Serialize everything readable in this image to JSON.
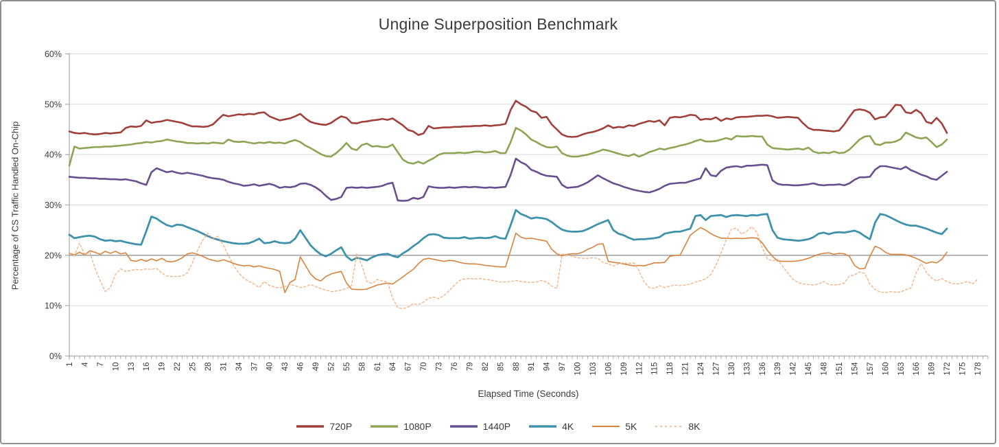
{
  "title": "Ungine Superposition Benchmark",
  "frame": {
    "border_color": "#8f8f8f",
    "background": "#ffffff"
  },
  "y_axis": {
    "title": "Percentage of CS Traffic Handled On-Chip",
    "min": 0,
    "max": 60,
    "step": 10,
    "tick_labels": [
      "0%",
      "10%",
      "20%",
      "30%",
      "40%",
      "50%",
      "60%"
    ],
    "emphasized_gridline": 20
  },
  "x_axis": {
    "title": "Elapsed Time (Seconds)",
    "first_label": 1,
    "label_step": 3,
    "last_label": 178,
    "axis_max": 180
  },
  "legend": [
    {
      "label": "720P",
      "color": "#A13F3B",
      "dashed": false,
      "swatch_width": 3.6
    },
    {
      "label": "1080P",
      "color": "#8DA452",
      "dashed": false,
      "swatch_width": 3.6
    },
    {
      "label": "1440P",
      "color": "#66508F",
      "dashed": false,
      "swatch_width": 3.6
    },
    {
      "label": "4K",
      "color": "#3F92AC",
      "dashed": false,
      "swatch_width": 3.6
    },
    {
      "label": "5K",
      "color": "#D9823C",
      "dashed": false,
      "swatch_width": 2.0
    },
    {
      "label": "8K",
      "color": "#F3AE7E",
      "dashed": true,
      "swatch_width": 1.6
    }
  ],
  "chart_data": {
    "type": "line",
    "title": "Ungine Superposition Benchmark",
    "xlabel": "Elapsed Time (Seconds)",
    "ylabel": "Percentage of CS Traffic Handled On-Chip",
    "x_start": 1,
    "x_step": 1,
    "ylim": [
      0,
      60
    ],
    "grid": true,
    "legend_position": "bottom",
    "series": [
      {
        "name": "720P",
        "color": "#A13F3B",
        "width": 2.6,
        "dash": null,
        "values": [
          44.6,
          44.3,
          44.2,
          44.3,
          44.1,
          44.0,
          44.1,
          44.3,
          44.2,
          44.3,
          44.4,
          45.3,
          45.6,
          45.5,
          45.7,
          46.8,
          46.3,
          46.5,
          46.6,
          46.9,
          46.7,
          46.5,
          46.3,
          45.9,
          45.6,
          45.6,
          45.5,
          45.6,
          46.0,
          47.0,
          47.9,
          47.6,
          47.8,
          48.0,
          47.9,
          48.1,
          48.0,
          48.3,
          48.4,
          47.6,
          47.2,
          46.8,
          47.0,
          47.2,
          47.6,
          48.1,
          47.2,
          46.5,
          46.2,
          46.0,
          45.9,
          46.3,
          47.0,
          47.6,
          47.3,
          46.3,
          46.2,
          46.5,
          46.6,
          46.8,
          46.9,
          47.1,
          46.9,
          47.2,
          46.5,
          45.8,
          44.9,
          44.6,
          43.9,
          44.2,
          45.7,
          45.2,
          45.3,
          45.4,
          45.4,
          45.5,
          45.5,
          45.6,
          45.6,
          45.7,
          45.7,
          45.8,
          45.7,
          45.8,
          45.9,
          46.1,
          48.9,
          50.7,
          50.0,
          49.5,
          48.7,
          48.4,
          47.3,
          47.5,
          46.0,
          45.0,
          44.0,
          43.6,
          43.5,
          43.6,
          44.0,
          44.3,
          44.5,
          44.8,
          45.2,
          45.8,
          45.3,
          45.5,
          45.4,
          45.8,
          45.7,
          46.1,
          46.4,
          46.7,
          46.5,
          46.8,
          45.8,
          47.3,
          47.5,
          47.4,
          47.6,
          47.9,
          47.8,
          46.9,
          47.1,
          47.0,
          47.4,
          46.7,
          47.2,
          47.0,
          47.4,
          47.5,
          47.5,
          47.6,
          47.7,
          47.7,
          47.8,
          47.6,
          47.3,
          47.4,
          47.5,
          47.4,
          47.3,
          46.2,
          45.3,
          44.9,
          44.9,
          44.8,
          44.7,
          44.6,
          44.8,
          46.0,
          47.5,
          48.8,
          49.0,
          48.8,
          48.3,
          47.0,
          47.4,
          47.5,
          48.6,
          49.9,
          49.8,
          48.4,
          48.2,
          48.9,
          48.2,
          46.5,
          46.2,
          47.3,
          46.2,
          44.3
        ]
      },
      {
        "name": "1080P",
        "color": "#8DA452",
        "width": 2.6,
        "dash": null,
        "values": [
          37.8,
          41.6,
          41.2,
          41.3,
          41.4,
          41.5,
          41.5,
          41.6,
          41.6,
          41.7,
          41.8,
          41.9,
          42.0,
          42.2,
          42.3,
          42.5,
          42.4,
          42.6,
          42.7,
          43.0,
          42.8,
          42.6,
          42.5,
          42.3,
          42.3,
          42.2,
          42.3,
          42.2,
          42.4,
          42.3,
          42.2,
          43.0,
          42.6,
          42.5,
          42.6,
          42.4,
          42.2,
          42.4,
          42.3,
          42.5,
          42.3,
          42.4,
          42.2,
          42.6,
          42.9,
          42.5,
          41.8,
          41.3,
          40.7,
          40.1,
          39.7,
          39.6,
          40.3,
          41.2,
          42.3,
          41.2,
          40.9,
          41.9,
          42.2,
          41.6,
          41.7,
          41.5,
          41.5,
          42.0,
          40.5,
          39.0,
          38.4,
          38.2,
          38.6,
          38.2,
          38.8,
          39.3,
          40.0,
          40.3,
          40.3,
          40.3,
          40.4,
          40.3,
          40.4,
          40.6,
          40.6,
          40.4,
          40.5,
          40.7,
          40.3,
          40.3,
          42.5,
          45.3,
          44.8,
          44.0,
          43.0,
          42.5,
          41.9,
          41.5,
          41.4,
          41.6,
          40.3,
          39.8,
          39.6,
          39.6,
          39.8,
          40.0,
          40.3,
          40.6,
          41.0,
          40.8,
          40.5,
          40.2,
          39.9,
          39.7,
          40.1,
          39.6,
          40.0,
          40.5,
          40.8,
          41.2,
          41.0,
          41.3,
          41.5,
          41.8,
          42.0,
          42.3,
          42.7,
          43.0,
          42.6,
          42.6,
          42.7,
          43.0,
          43.3,
          43.0,
          43.7,
          43.6,
          43.6,
          43.7,
          43.6,
          43.6,
          42.0,
          41.3,
          41.2,
          41.1,
          41.0,
          41.1,
          41.2,
          41.0,
          41.4,
          40.6,
          40.3,
          40.4,
          40.3,
          40.6,
          40.3,
          40.4,
          41.0,
          42.0,
          43.0,
          43.6,
          43.7,
          42.1,
          41.9,
          42.4,
          42.4,
          42.6,
          43.1,
          44.4,
          43.9,
          43.4,
          43.2,
          43.4,
          42.5,
          41.5,
          42.0,
          43.0
        ]
      },
      {
        "name": "1440P",
        "color": "#66508F",
        "width": 2.6,
        "dash": null,
        "values": [
          35.6,
          35.5,
          35.4,
          35.4,
          35.3,
          35.3,
          35.2,
          35.2,
          35.1,
          35.1,
          35.0,
          35.1,
          34.9,
          34.7,
          34.3,
          34.0,
          36.5,
          37.3,
          36.9,
          36.5,
          36.7,
          36.4,
          36.2,
          36.4,
          36.2,
          36.0,
          35.8,
          35.5,
          35.3,
          35.2,
          35.0,
          34.6,
          34.3,
          34.1,
          33.8,
          33.9,
          34.1,
          33.8,
          34.0,
          34.2,
          33.9,
          33.4,
          33.6,
          33.5,
          33.7,
          34.2,
          34.3,
          34.0,
          33.5,
          32.8,
          31.8,
          31.0,
          31.2,
          31.6,
          33.4,
          33.5,
          33.4,
          33.5,
          33.4,
          33.5,
          33.6,
          33.8,
          34.2,
          34.4,
          30.9,
          30.8,
          30.9,
          31.4,
          31.2,
          31.6,
          33.7,
          33.5,
          33.4,
          33.4,
          33.5,
          33.4,
          33.5,
          33.6,
          33.5,
          33.6,
          33.5,
          33.4,
          33.5,
          33.4,
          33.5,
          33.6,
          36.0,
          39.2,
          38.5,
          38.0,
          37.0,
          36.6,
          36.1,
          35.8,
          35.7,
          35.6,
          34.0,
          33.4,
          33.5,
          33.6,
          34.0,
          34.5,
          35.2,
          35.9,
          35.3,
          34.8,
          34.3,
          34.0,
          33.6,
          33.3,
          33.0,
          32.8,
          32.6,
          32.5,
          32.8,
          33.2,
          33.8,
          34.2,
          34.3,
          34.4,
          34.4,
          34.7,
          35.0,
          35.3,
          37.3,
          35.9,
          35.7,
          36.8,
          37.4,
          37.6,
          37.7,
          37.5,
          37.8,
          37.8,
          37.9,
          38.0,
          37.9,
          34.9,
          34.2,
          34.0,
          34.0,
          33.9,
          33.9,
          34.0,
          34.1,
          34.3,
          34.0,
          33.9,
          34.0,
          34.0,
          34.1,
          33.9,
          34.3,
          35.0,
          35.5,
          35.5,
          35.6,
          37.0,
          37.7,
          37.7,
          37.5,
          37.3,
          37.1,
          37.6,
          36.9,
          36.5,
          36.0,
          35.7,
          35.2,
          35.0,
          35.8,
          36.6
        ]
      },
      {
        "name": "4K",
        "color": "#3F92AC",
        "width": 2.8,
        "dash": null,
        "values": [
          24.1,
          23.4,
          23.6,
          23.8,
          23.9,
          23.7,
          23.2,
          22.9,
          23.0,
          22.8,
          22.9,
          22.6,
          22.4,
          22.2,
          22.1,
          24.8,
          27.7,
          27.3,
          26.6,
          26.0,
          25.7,
          26.1,
          26.0,
          25.6,
          25.2,
          24.8,
          24.3,
          23.8,
          23.4,
          23.1,
          22.8,
          22.6,
          22.4,
          22.3,
          22.3,
          22.4,
          22.8,
          23.3,
          22.4,
          22.5,
          22.8,
          22.5,
          22.4,
          22.5,
          23.3,
          25.0,
          23.5,
          22.0,
          21.0,
          20.2,
          19.8,
          20.3,
          21.0,
          21.6,
          19.8,
          19.0,
          19.5,
          19.3,
          19.0,
          19.6,
          20.0,
          20.2,
          20.3,
          19.9,
          19.6,
          20.4,
          21.0,
          21.8,
          22.5,
          23.4,
          24.1,
          24.2,
          24.0,
          23.5,
          23.4,
          23.4,
          23.4,
          23.6,
          23.3,
          23.4,
          23.5,
          23.4,
          23.5,
          23.8,
          23.4,
          23.3,
          26.0,
          29.0,
          28.2,
          27.8,
          27.3,
          27.5,
          27.4,
          27.2,
          26.6,
          25.8,
          25.1,
          24.8,
          24.7,
          24.7,
          24.8,
          25.2,
          25.7,
          26.2,
          26.6,
          27.0,
          25.0,
          24.3,
          24.0,
          23.5,
          23.1,
          23.2,
          23.2,
          23.3,
          23.4,
          23.6,
          24.3,
          24.5,
          24.7,
          24.7,
          25.0,
          25.3,
          27.8,
          28.0,
          27.0,
          27.8,
          27.9,
          28.0,
          27.6,
          27.9,
          28.0,
          27.9,
          27.8,
          28.0,
          27.9,
          28.1,
          28.2,
          25.0,
          23.5,
          23.2,
          23.1,
          23.0,
          22.9,
          23.0,
          23.2,
          23.6,
          24.3,
          24.5,
          24.2,
          24.5,
          24.6,
          24.5,
          24.7,
          24.9,
          24.5,
          23.8,
          23.2,
          26.5,
          28.2,
          28.0,
          27.5,
          27.0,
          26.5,
          26.1,
          25.9,
          25.9,
          25.6,
          25.3,
          24.9,
          24.5,
          24.2,
          25.3
        ]
      },
      {
        "name": "5K",
        "color": "#D9823C",
        "width": 1.6,
        "dash": null,
        "values": [
          20.4,
          20.1,
          20.6,
          20.1,
          20.9,
          20.6,
          20.2,
          20.8,
          20.4,
          20.8,
          20.3,
          20.5,
          19.0,
          18.8,
          19.2,
          18.8,
          19.3,
          18.9,
          19.4,
          18.8,
          18.7,
          19.0,
          19.5,
          20.3,
          20.5,
          20.2,
          19.8,
          19.3,
          19.0,
          18.8,
          19.1,
          18.8,
          18.4,
          18.1,
          17.9,
          18.0,
          17.7,
          17.9,
          17.6,
          17.4,
          17.2,
          16.8,
          12.6,
          14.6,
          15.2,
          19.7,
          18.0,
          16.3,
          15.3,
          14.9,
          15.8,
          16.3,
          16.6,
          16.8,
          14.5,
          13.3,
          13.2,
          13.2,
          13.3,
          13.7,
          14.1,
          14.3,
          14.5,
          14.3,
          15.0,
          15.7,
          16.5,
          17.2,
          18.3,
          19.2,
          19.4,
          19.2,
          19.0,
          18.8,
          19.0,
          18.9,
          18.6,
          18.4,
          18.3,
          18.3,
          18.2,
          18.0,
          17.9,
          17.8,
          17.7,
          17.7,
          21.0,
          24.4,
          23.6,
          23.3,
          23.4,
          23.2,
          23.0,
          22.8,
          21.2,
          20.3,
          19.9,
          20.2,
          20.3,
          20.3,
          20.6,
          21.2,
          21.6,
          22.2,
          22.3,
          18.8,
          18.6,
          18.5,
          18.3,
          18.1,
          17.9,
          18.0,
          17.9,
          18.2,
          18.5,
          18.5,
          18.6,
          19.8,
          20.0,
          20.0,
          22.0,
          24.0,
          24.8,
          25.5,
          25.0,
          24.3,
          23.8,
          23.4,
          23.4,
          23.3,
          23.4,
          23.3,
          23.4,
          23.5,
          23.4,
          22.5,
          21.0,
          19.8,
          18.9,
          18.8,
          18.8,
          18.8,
          18.9,
          19.1,
          19.4,
          19.8,
          20.2,
          20.4,
          20.5,
          20.2,
          20.4,
          20.3,
          19.8,
          18.0,
          17.3,
          17.4,
          19.8,
          21.8,
          21.4,
          20.6,
          20.2,
          20.2,
          20.2,
          20.1,
          19.8,
          19.4,
          18.9,
          18.4,
          18.7,
          18.5,
          19.2,
          20.6
        ]
      },
      {
        "name": "8K",
        "color": "#F3AE7E",
        "width": 1.3,
        "dash": "3,3",
        "values": [
          20.3,
          20.0,
          22.4,
          20.1,
          20.6,
          17.5,
          15.0,
          12.8,
          13.6,
          16.2,
          17.3,
          16.8,
          17.0,
          17.2,
          17.1,
          17.3,
          17.2,
          17.4,
          16.5,
          15.9,
          15.8,
          15.8,
          15.9,
          16.5,
          18.5,
          21.0,
          23.0,
          24.4,
          23.3,
          23.8,
          22.0,
          20.0,
          18.0,
          16.5,
          15.5,
          14.8,
          14.3,
          13.6,
          14.8,
          14.0,
          13.7,
          13.5,
          13.8,
          14.2,
          14.0,
          13.6,
          13.8,
          14.2,
          13.8,
          13.4,
          13.1,
          12.8,
          12.9,
          13.1,
          13.4,
          14.0,
          20.3,
          18.0,
          14.8,
          14.4,
          15.2,
          14.9,
          14.7,
          11.5,
          9.6,
          9.4,
          9.7,
          10.4,
          10.2,
          10.7,
          11.5,
          11.7,
          11.4,
          12.0,
          13.0,
          14.0,
          15.0,
          15.3,
          15.4,
          15.3,
          15.4,
          15.2,
          15.1,
          14.9,
          14.7,
          14.7,
          14.8,
          15.0,
          14.8,
          14.7,
          14.6,
          14.7,
          15.0,
          14.7,
          13.9,
          13.4,
          20.2,
          20.1,
          19.8,
          19.5,
          19.4,
          19.4,
          19.5,
          19.4,
          18.6,
          18.3,
          17.9,
          18.3,
          18.5,
          18.4,
          18.5,
          17.0,
          14.7,
          13.6,
          13.4,
          14.0,
          13.6,
          13.9,
          14.1,
          14.0,
          14.1,
          14.3,
          14.7,
          15.0,
          15.3,
          16.2,
          18.0,
          20.5,
          23.0,
          25.2,
          25.4,
          24.2,
          24.8,
          25.7,
          24.5,
          21.5,
          19.3,
          18.9,
          19.2,
          17.8,
          16.5,
          15.2,
          14.6,
          14.3,
          14.2,
          14.1,
          14.3,
          14.8,
          14.2,
          14.1,
          14.2,
          14.5,
          15.9,
          16.1,
          16.7,
          16.4,
          14.3,
          13.2,
          12.7,
          12.6,
          12.8,
          12.7,
          12.7,
          13.2,
          13.5,
          16.5,
          18.4,
          16.6,
          15.5,
          14.9,
          15.4,
          14.8,
          14.4,
          14.3,
          14.5,
          14.8,
          14.3,
          15.3
        ]
      }
    ]
  }
}
